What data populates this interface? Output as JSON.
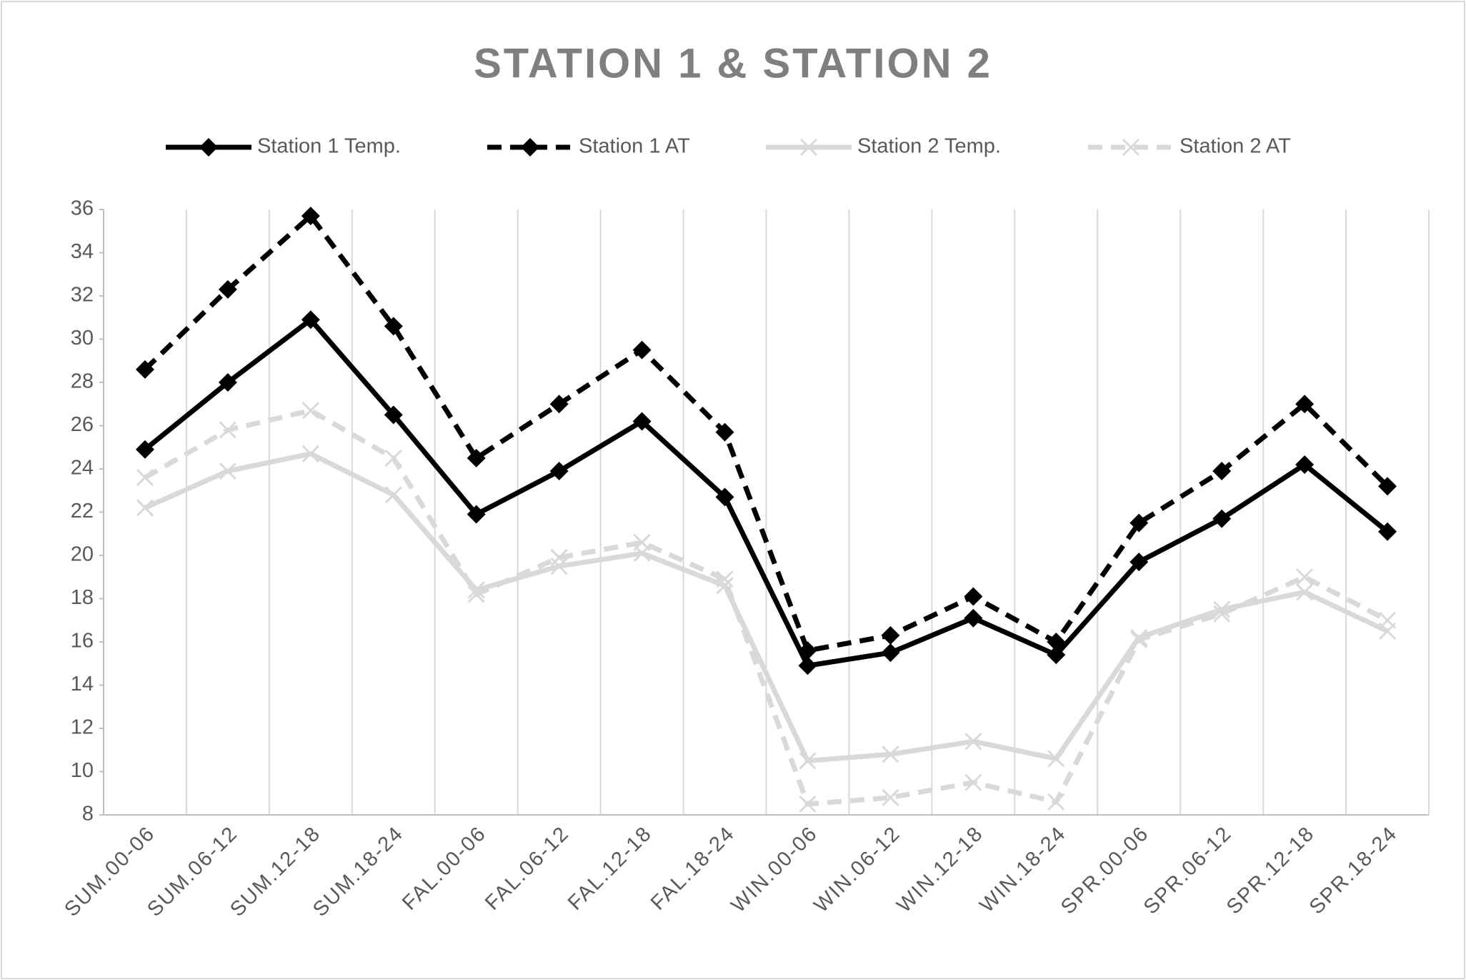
{
  "chart_data": {
    "type": "line",
    "title": "STATION 1 & STATION 2",
    "categories": [
      "SUM.00-06",
      "SUM.06-12",
      "SUM.12-18",
      "SUM.18-24",
      "FAL.00-06",
      "FAL.06-12",
      "FAL.12-18",
      "FAL.18-24",
      "WIN.00-06",
      "WIN.06-12",
      "WIN.12-18",
      "WIN.18-24",
      "SPR.00-06",
      "SPR.06-12",
      "SPR.12-18",
      "SPR.18-24"
    ],
    "series": [
      {
        "name": "Station 1 Temp.",
        "color": "#000000",
        "dash": "solid",
        "marker": "diamond",
        "values": [
          24.9,
          28.0,
          30.9,
          26.5,
          21.9,
          23.9,
          26.2,
          22.7,
          14.9,
          15.5,
          17.1,
          15.4,
          19.7,
          21.7,
          24.2,
          21.1
        ]
      },
      {
        "name": "Station 1 AT",
        "color": "#000000",
        "dash": "dashed",
        "marker": "diamond",
        "values": [
          28.6,
          32.3,
          35.7,
          30.6,
          24.5,
          27.0,
          29.5,
          25.7,
          15.6,
          16.3,
          18.1,
          16.0,
          21.5,
          23.9,
          27.0,
          23.2
        ]
      },
      {
        "name": "Station 2 Temp.",
        "color": "#d9d9d9",
        "dash": "solid",
        "marker": "x",
        "values": [
          22.2,
          23.9,
          24.7,
          22.8,
          18.4,
          19.5,
          20.1,
          18.6,
          10.5,
          10.8,
          11.4,
          10.6,
          16.2,
          17.5,
          18.3,
          16.5
        ]
      },
      {
        "name": "Station 2 AT",
        "color": "#d9d9d9",
        "dash": "dashed",
        "marker": "x",
        "values": [
          23.6,
          25.8,
          26.7,
          24.5,
          18.2,
          19.9,
          20.6,
          18.9,
          8.5,
          8.8,
          9.5,
          8.6,
          16.1,
          17.3,
          19.0,
          17.0
        ]
      }
    ],
    "ylim": [
      8,
      36
    ],
    "yticks": [
      8,
      10,
      12,
      14,
      16,
      18,
      20,
      22,
      24,
      26,
      28,
      30,
      32,
      34,
      36
    ],
    "grid": true,
    "legend": "top"
  }
}
